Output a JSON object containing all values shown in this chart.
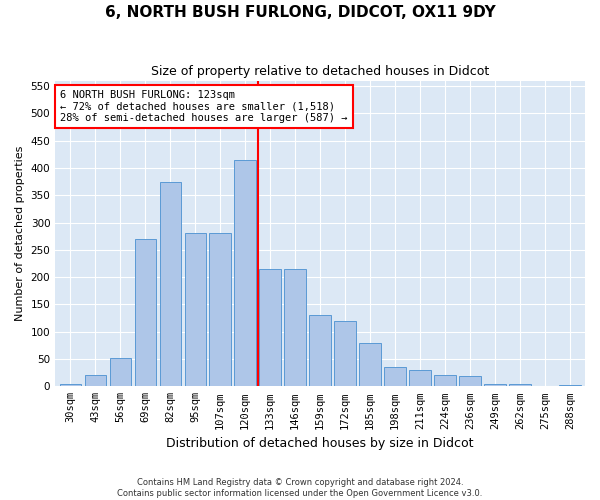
{
  "title": "6, NORTH BUSH FURLONG, DIDCOT, OX11 9DY",
  "subtitle": "Size of property relative to detached houses in Didcot",
  "xlabel": "Distribution of detached houses by size in Didcot",
  "ylabel": "Number of detached properties",
  "categories": [
    "30sqm",
    "43sqm",
    "56sqm",
    "69sqm",
    "82sqm",
    "95sqm",
    "107sqm",
    "120sqm",
    "133sqm",
    "146sqm",
    "159sqm",
    "172sqm",
    "185sqm",
    "198sqm",
    "211sqm",
    "224sqm",
    "236sqm",
    "249sqm",
    "262sqm",
    "275sqm",
    "288sqm"
  ],
  "values": [
    5,
    20,
    52,
    270,
    375,
    280,
    280,
    415,
    215,
    215,
    130,
    120,
    80,
    35,
    30,
    20,
    18,
    5,
    5,
    0,
    3
  ],
  "bar_color": "#aec6e8",
  "bar_edge_color": "#5a9ad5",
  "bg_color": "#dce8f5",
  "red_line_x": 7.5,
  "annotation_title": "6 NORTH BUSH FURLONG: 123sqm",
  "annotation_line1": "← 72% of detached houses are smaller (1,518)",
  "annotation_line2": "28% of semi-detached houses are larger (587) →",
  "footer1": "Contains HM Land Registry data © Crown copyright and database right 2024.",
  "footer2": "Contains public sector information licensed under the Open Government Licence v3.0.",
  "ylim": [
    0,
    560
  ],
  "yticks": [
    0,
    50,
    100,
    150,
    200,
    250,
    300,
    350,
    400,
    450,
    500,
    550
  ],
  "title_fontsize": 11,
  "subtitle_fontsize": 9,
  "ylabel_fontsize": 8,
  "xlabel_fontsize": 9,
  "tick_fontsize": 7.5,
  "footer_fontsize": 6,
  "ann_fontsize": 7.5
}
